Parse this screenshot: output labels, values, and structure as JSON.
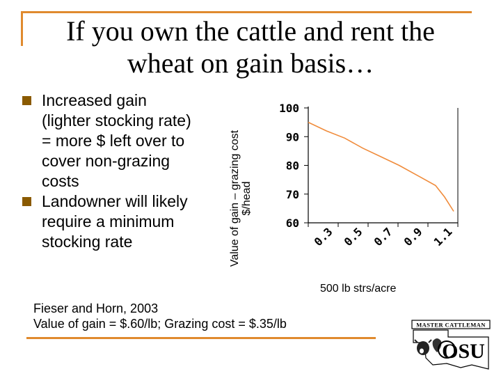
{
  "slide": {
    "title_line1": "If you own the cattle and rent the",
    "title_line2": "wheat on gain basis…",
    "bullets": [
      {
        "lines": [
          "Increased gain",
          "(lighter stocking rate)",
          "= more $ left over to",
          "cover non-grazing",
          "costs"
        ]
      },
      {
        "lines": [
          "Landowner will likely",
          "require a minimum",
          "stocking rate"
        ]
      }
    ],
    "citation_line1": "Fieser and Horn, 2003",
    "citation_line2": "Value of gain = $.60/lb; Grazing cost = $.35/lb",
    "logo_text": "MASTER CATTLEMAN",
    "logo_mark": "OSU",
    "accent_color": "#e08a2e",
    "bullet_color": "#8a5a00"
  },
  "chart_data": {
    "type": "line",
    "ylabel_line1": "Value of gain – grazing cost",
    "ylabel_line2": "$/head",
    "xlabel": "500 lb strs/acre",
    "x_ticks": [
      "0.3",
      "0.5",
      "0.7",
      "0.9",
      "1.1"
    ],
    "y_ticks": [
      100,
      90,
      80,
      70,
      60
    ],
    "ylim": [
      60,
      100
    ],
    "xlim": [
      0.3,
      1.1
    ],
    "series": [
      {
        "color": "#f08c3c",
        "x": [
          0.3,
          0.4,
          0.5,
          0.6,
          0.7,
          0.8,
          0.9,
          1.0,
          1.05,
          1.1
        ],
        "y": [
          95,
          92,
          89.5,
          86,
          83,
          80,
          76.5,
          73,
          69,
          64
        ]
      }
    ]
  }
}
